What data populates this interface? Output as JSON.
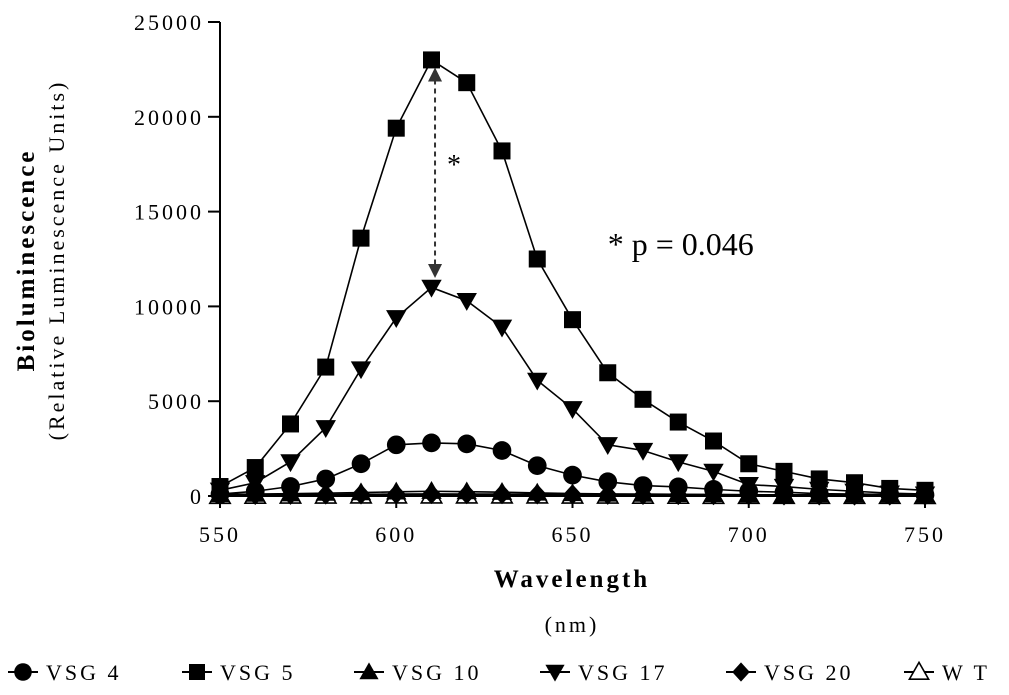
{
  "chart_data": {
    "type": "line",
    "ylabel": "Bioluminescence",
    "ylabel_sub": "(Relative Luminescence Units)",
    "xlabel": "Wavelength",
    "xlabel_sub": "(nm)",
    "xlim": [
      550,
      750
    ],
    "ylim": [
      0,
      25000
    ],
    "xticks": [
      550,
      600,
      650,
      700,
      750
    ],
    "yticks": [
      0,
      5000,
      10000,
      15000,
      20000,
      25000
    ],
    "grid": false,
    "legend_position": "bottom",
    "x": [
      550,
      560,
      570,
      580,
      590,
      600,
      610,
      620,
      630,
      640,
      650,
      660,
      670,
      680,
      690,
      700,
      710,
      720,
      730,
      740,
      750
    ],
    "series": [
      {
        "name": "VSG 4",
        "marker": "circle",
        "values": [
          100,
          250,
          500,
          900,
          1700,
          2700,
          2800,
          2750,
          2400,
          1600,
          1100,
          750,
          550,
          480,
          350,
          250,
          200,
          120,
          100,
          80,
          60
        ]
      },
      {
        "name": "VSG 5",
        "marker": "square",
        "values": [
          500,
          1500,
          3800,
          6800,
          13600,
          19400,
          23000,
          21800,
          18200,
          12500,
          9300,
          6500,
          5100,
          3900,
          2900,
          1700,
          1300,
          900,
          700,
          400,
          300
        ]
      },
      {
        "name": "VSG 10",
        "marker": "triangle-up",
        "values": [
          80,
          100,
          120,
          150,
          180,
          220,
          250,
          230,
          200,
          160,
          130,
          110,
          100,
          90,
          80,
          70,
          60,
          60,
          50,
          50,
          40
        ]
      },
      {
        "name": "VSG 17",
        "marker": "triangle-down",
        "values": [
          300,
          700,
          1800,
          3600,
          6700,
          9400,
          11000,
          10300,
          8900,
          6100,
          4600,
          2700,
          2400,
          1800,
          1300,
          600,
          500,
          350,
          250,
          150,
          100
        ]
      },
      {
        "name": "VSG 20",
        "marker": "diamond",
        "values": [
          50,
          60,
          70,
          80,
          90,
          100,
          110,
          105,
          100,
          90,
          80,
          70,
          60,
          55,
          50,
          45,
          40,
          35,
          30,
          30,
          25
        ]
      },
      {
        "name": "W T",
        "marker": "triangle-up-open",
        "values": [
          20,
          25,
          30,
          30,
          35,
          40,
          40,
          40,
          35,
          35,
          30,
          30,
          25,
          25,
          20,
          20,
          20,
          15,
          15,
          15,
          10
        ]
      }
    ],
    "annotations": [
      {
        "text": "* p = 0.046",
        "x": 660,
        "y": 12700
      },
      {
        "text": "*",
        "x": 611,
        "y": 17500,
        "arrow_from": [
          611,
          22600
        ],
        "arrow_to": [
          611,
          11500
        ],
        "style": "dashed-double-arrow"
      }
    ]
  }
}
